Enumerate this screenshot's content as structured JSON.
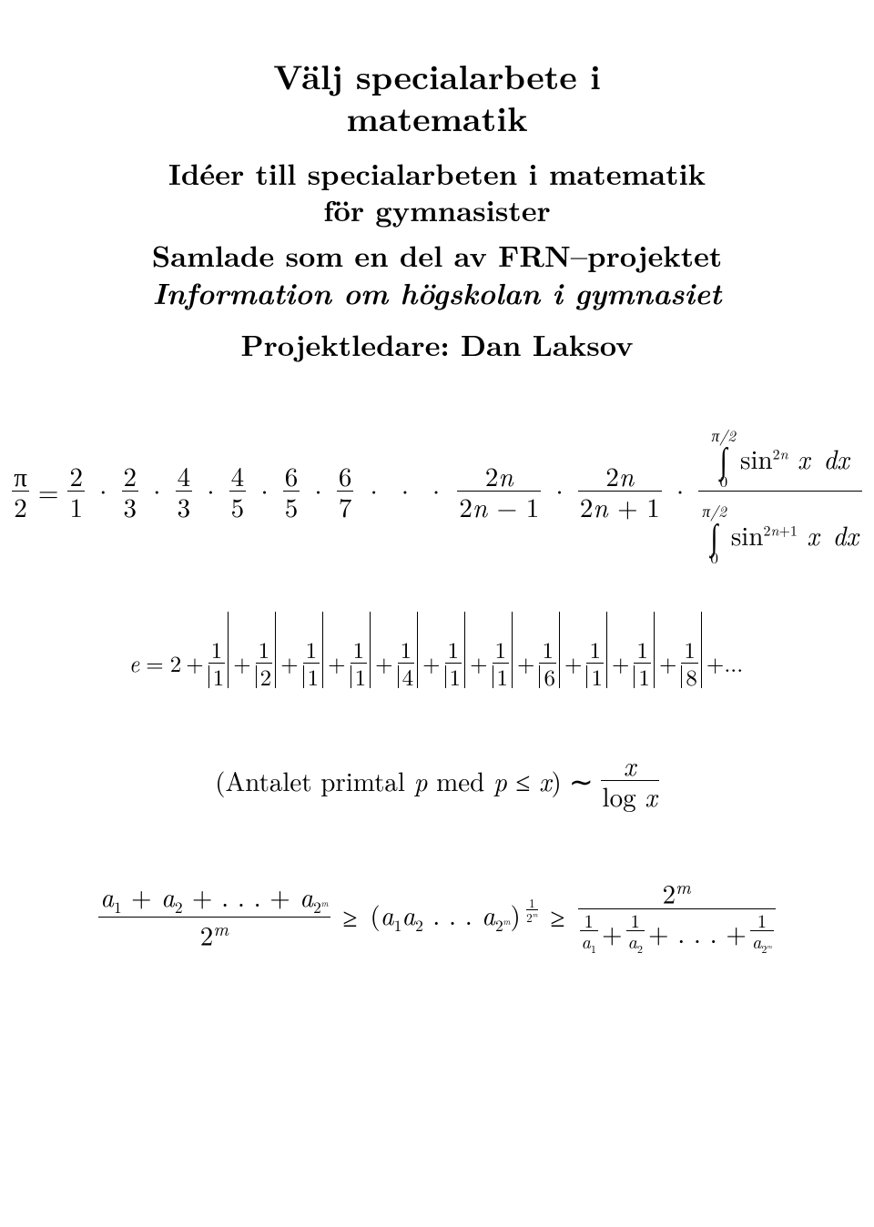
{
  "typography": {
    "title_fontsize_pt": 28,
    "subtitle_fontsize_pt": 24,
    "projectleader_fontsize_pt": 24,
    "formula_fontsize_pt": 22,
    "e_formula_fontsize_pt": 19,
    "font_family": "Computer Modern / Latin Modern (serif)",
    "font_weight_title": "bold",
    "color_text": "#000000",
    "background_color": "#ffffff"
  },
  "title": {
    "line1": "Välj specialarbete i",
    "line2": "matematik"
  },
  "subtitle": {
    "line1": "Idéer till specialarbeten i matematik",
    "line2": "för gymnasister",
    "line3": "Samlade som en del av FRN–projektet",
    "line4": "Information om högskolan i gymnasiet"
  },
  "project_leader_label": "Projektledare: Dan Laksov",
  "wallis": {
    "lhs_num": "π",
    "lhs_den": "2",
    "eq": "=",
    "factors": [
      {
        "num": "2",
        "den": "1"
      },
      {
        "num": "2",
        "den": "3"
      },
      {
        "num": "4",
        "den": "3"
      },
      {
        "num": "4",
        "den": "5"
      },
      {
        "num": "6",
        "den": "5"
      },
      {
        "num": "6",
        "den": "7"
      }
    ],
    "ellipsis": "· · ·",
    "tail": [
      {
        "num": "2n",
        "den": "2n − 1"
      },
      {
        "num": "2n",
        "den": "2n + 1"
      }
    ],
    "integral_num": {
      "lower": "0",
      "upper": "π/2",
      "integrand": "sin",
      "exp": "2n",
      "var": "x",
      "dx": "dx"
    },
    "integral_den": {
      "lower": "0",
      "upper": "π/2",
      "integrand": "sin",
      "exp": "2n+1",
      "var": "x",
      "dx": "dx"
    }
  },
  "e_cf": {
    "lhs": "e",
    "eq": "=",
    "lead": "2",
    "terms": [
      {
        "num": "1",
        "den": "1"
      },
      {
        "num": "1",
        "den": "2"
      },
      {
        "num": "1",
        "den": "1"
      },
      {
        "num": "1",
        "den": "1"
      },
      {
        "num": "1",
        "den": "4"
      },
      {
        "num": "1",
        "den": "1"
      },
      {
        "num": "1",
        "den": "1"
      },
      {
        "num": "1",
        "den": "6"
      },
      {
        "num": "1",
        "den": "1"
      },
      {
        "num": "1",
        "den": "1"
      },
      {
        "num": "1",
        "den": "8"
      }
    ],
    "trailing": "+..."
  },
  "prime_counting": {
    "text_pre": "(Antalet primtal ",
    "p": "p",
    "text_mid": " med ",
    "cond": "p ≤ x",
    "text_post": ")",
    "sim": "∼",
    "rhs_num": "x",
    "rhs_den": "log x"
  },
  "am_gm_hm": {
    "lhs_num_terms": [
      "a",
      "1",
      "a",
      "2",
      "a",
      "2",
      "m"
    ],
    "lhs_num": "a₁ + a₂ + . . . + a_{2^m}",
    "lhs_den": "2^m",
    "geq": "≥",
    "middle_base": "(a₁a₂ . . . a_{2^m})",
    "middle_exp_num": "1",
    "middle_exp_den": "2^m",
    "rhs_num": "2^m",
    "rhs_den_terms": [
      "1/a₁",
      "1/a₂",
      "1/a_{2^m}"
    ]
  }
}
